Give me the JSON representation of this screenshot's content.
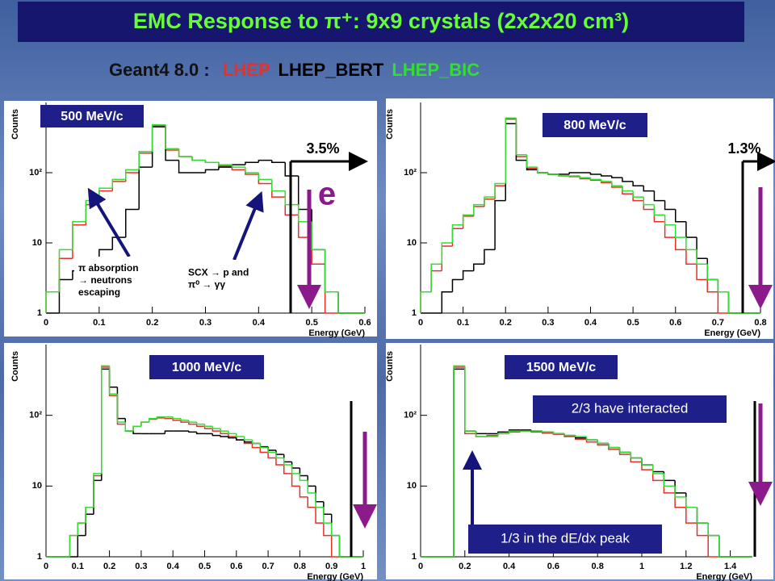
{
  "title": "EMC Response to π⁺: 9x9 crystals (2x2x20 cm³)",
  "subtitle": "Geant4 8.0 :",
  "chart_data": [
    {
      "type": "histogram",
      "title": "500 MeV/c",
      "xlabel": "Energy (GeV)",
      "ylabel": "Counts",
      "log": true,
      "bins": [
        0,
        0.025,
        0.05,
        0.075,
        0.1,
        0.125,
        0.15,
        0.175,
        0.2,
        0.225,
        0.25,
        0.275,
        0.3,
        0.325,
        0.35,
        0.375,
        0.4,
        0.425,
        0.45,
        0.475,
        0.5,
        0.525,
        0.55,
        0.575,
        0.6
      ],
      "series": [
        {
          "name": "LHEP",
          "color": "#e8302a",
          "values": [
            2,
            6,
            18,
            35,
            55,
            75,
            100,
            190,
            470,
            210,
            170,
            150,
            140,
            125,
            110,
            95,
            70,
            45,
            25,
            12,
            5,
            1,
            0,
            0
          ]
        },
        {
          "name": "LHEP_BERT",
          "color": "#000000",
          "values": [
            1,
            3,
            4,
            6,
            8,
            12,
            30,
            120,
            450,
            150,
            100,
            100,
            110,
            120,
            130,
            140,
            150,
            140,
            90,
            30,
            8,
            2,
            0,
            0
          ]
        },
        {
          "name": "LHEP_BIC",
          "color": "#33dd33",
          "values": [
            2,
            8,
            20,
            40,
            60,
            80,
            110,
            200,
            480,
            220,
            170,
            150,
            140,
            130,
            120,
            100,
            80,
            55,
            35,
            20,
            8,
            2,
            0,
            0
          ]
        }
      ],
      "xlim": [
        0,
        0.6
      ],
      "xticks": [
        0,
        0.1,
        0.2,
        0.3,
        0.4,
        0.5,
        0.6
      ],
      "ylim": [
        1,
        1000
      ],
      "yticks": [
        1,
        10,
        {
          "value": 100,
          "label": "10²"
        }
      ],
      "annotations": [
        [
          "3.5%"
        ],
        [
          "e"
        ],
        [
          "π absorption",
          "→ neutrons",
          "escaping"
        ],
        [
          "SCX → p and",
          "π⁰ → γγ"
        ]
      ]
    },
    {
      "type": "histogram",
      "title": "800 MeV/c",
      "xlabel": "Energy (GeV)",
      "ylabel": "Counts",
      "log": true,
      "bins": [
        0,
        0.025,
        0.05,
        0.075,
        0.1,
        0.125,
        0.15,
        0.175,
        0.2,
        0.225,
        0.25,
        0.275,
        0.3,
        0.325,
        0.35,
        0.375,
        0.4,
        0.425,
        0.45,
        0.475,
        0.5,
        0.525,
        0.55,
        0.575,
        0.6,
        0.625,
        0.65,
        0.675,
        0.7,
        0.725,
        0.75,
        0.775,
        0.8
      ],
      "series": [
        {
          "color": "#e8302a",
          "values": [
            2,
            4,
            9,
            16,
            24,
            33,
            42,
            65,
            580,
            170,
            115,
            100,
            95,
            90,
            88,
            82,
            78,
            72,
            62,
            50,
            40,
            30,
            20,
            12,
            8,
            5,
            3,
            2,
            1,
            0,
            0,
            0
          ]
        },
        {
          "color": "#000000",
          "values": [
            1,
            1,
            2,
            3,
            4,
            5,
            8,
            40,
            500,
            150,
            110,
            100,
            95,
            95,
            100,
            100,
            95,
            90,
            85,
            75,
            65,
            55,
            40,
            30,
            20,
            12,
            6,
            3,
            2,
            1,
            0,
            0
          ]
        },
        {
          "color": "#33dd33",
          "values": [
            2,
            5,
            10,
            18,
            25,
            35,
            45,
            70,
            600,
            180,
            120,
            100,
            95,
            90,
            90,
            85,
            80,
            75,
            65,
            55,
            45,
            35,
            25,
            18,
            12,
            8,
            5,
            3,
            2,
            1,
            0,
            0
          ]
        }
      ],
      "xlim": [
        0,
        0.8
      ],
      "xticks": [
        0,
        0.1,
        0.2,
        0.3,
        0.4,
        0.5,
        0.6,
        0.7,
        0.8
      ],
      "ylim": [
        1,
        1000
      ],
      "yticks": [
        1,
        10,
        {
          "value": 100,
          "label": "10²"
        }
      ],
      "annotations": [
        [
          "1.3%"
        ]
      ]
    },
    {
      "type": "histogram",
      "title": "1000 MeV/c",
      "xlabel": "Energy (GeV)",
      "ylabel": "Counts",
      "log": true,
      "bins": [
        0,
        0.025,
        0.05,
        0.075,
        0.1,
        0.125,
        0.15,
        0.175,
        0.2,
        0.225,
        0.25,
        0.275,
        0.3,
        0.325,
        0.35,
        0.375,
        0.4,
        0.425,
        0.45,
        0.475,
        0.5,
        0.525,
        0.55,
        0.575,
        0.6,
        0.625,
        0.65,
        0.675,
        0.7,
        0.725,
        0.75,
        0.775,
        0.8,
        0.825,
        0.85,
        0.875,
        0.9,
        0.925,
        0.95,
        0.975,
        1
      ],
      "series": [
        {
          "color": "#e8302a",
          "values": [
            0,
            0,
            1,
            2,
            3,
            5,
            14,
            480,
            190,
            75,
            60,
            70,
            80,
            88,
            92,
            90,
            85,
            80,
            75,
            70,
            65,
            60,
            55,
            50,
            45,
            40,
            35,
            30,
            25,
            20,
            15,
            10,
            7,
            5,
            3,
            2,
            1,
            0,
            0,
            0
          ]
        },
        {
          "color": "#000000",
          "values": [
            0,
            0,
            1,
            1,
            2,
            4,
            12,
            450,
            250,
            90,
            60,
            55,
            55,
            55,
            55,
            60,
            60,
            60,
            58,
            55,
            55,
            52,
            50,
            48,
            45,
            42,
            40,
            36,
            32,
            28,
            22,
            18,
            14,
            10,
            6,
            4,
            2,
            1,
            0,
            0
          ]
        },
        {
          "color": "#33dd33",
          "values": [
            0,
            0,
            1,
            2,
            3,
            5,
            15,
            500,
            200,
            80,
            60,
            70,
            80,
            90,
            95,
            95,
            90,
            85,
            80,
            75,
            70,
            65,
            60,
            55,
            50,
            45,
            40,
            35,
            30,
            25,
            20,
            15,
            12,
            8,
            5,
            3,
            2,
            1,
            0,
            0
          ]
        }
      ],
      "xlim": [
        0,
        1
      ],
      "xticks": [
        0,
        0.1,
        0.2,
        0.3,
        0.4,
        0.5,
        0.6,
        0.7,
        0.8,
        0.9,
        1
      ],
      "ylim": [
        1,
        1000
      ],
      "yticks": [
        1,
        10,
        {
          "value": 100,
          "label": "10²"
        }
      ],
      "annotations": []
    },
    {
      "type": "histogram",
      "title": "1500 MeV/c",
      "xlabel": "Energy (GeV)",
      "ylabel": "Counts",
      "log": true,
      "bins": [
        0,
        0.05,
        0.1,
        0.15,
        0.2,
        0.25,
        0.3,
        0.35,
        0.4,
        0.45,
        0.5,
        0.55,
        0.6,
        0.65,
        0.7,
        0.75,
        0.8,
        0.85,
        0.9,
        0.95,
        1,
        1.05,
        1.1,
        1.15,
        1.2,
        1.25,
        1.3,
        1.35,
        1.4,
        1.45,
        1.5
      ],
      "series": [
        {
          "color": "#e8302a",
          "values": [
            0,
            0,
            1,
            480,
            55,
            50,
            52,
            55,
            58,
            60,
            58,
            56,
            54,
            50,
            46,
            42,
            38,
            33,
            28,
            22,
            17,
            12,
            8,
            5,
            3,
            2,
            1,
            0,
            0,
            0
          ]
        },
        {
          "color": "#000000",
          "values": [
            0,
            0,
            1,
            450,
            60,
            55,
            55,
            58,
            62,
            62,
            60,
            58,
            55,
            52,
            48,
            45,
            40,
            35,
            30,
            25,
            20,
            16,
            12,
            8,
            5,
            3,
            2,
            1,
            0,
            0
          ]
        },
        {
          "color": "#33dd33",
          "values": [
            0,
            0,
            1,
            500,
            60,
            50,
            50,
            55,
            60,
            60,
            60,
            58,
            55,
            52,
            50,
            45,
            40,
            35,
            30,
            25,
            20,
            15,
            10,
            7,
            5,
            3,
            2,
            1,
            0,
            0
          ]
        }
      ],
      "xlim": [
        0,
        1.5
      ],
      "xticks": [
        0,
        0.2,
        0.4,
        0.6,
        0.8,
        1,
        1.2,
        1.4
      ],
      "ylim": [
        1,
        1000
      ],
      "yticks": [
        1,
        10,
        {
          "value": 100,
          "label": "10²"
        }
      ],
      "annotations": [
        [
          "2/3 have interacted"
        ],
        [
          "1/3 in the dE/dx peak"
        ]
      ]
    }
  ]
}
